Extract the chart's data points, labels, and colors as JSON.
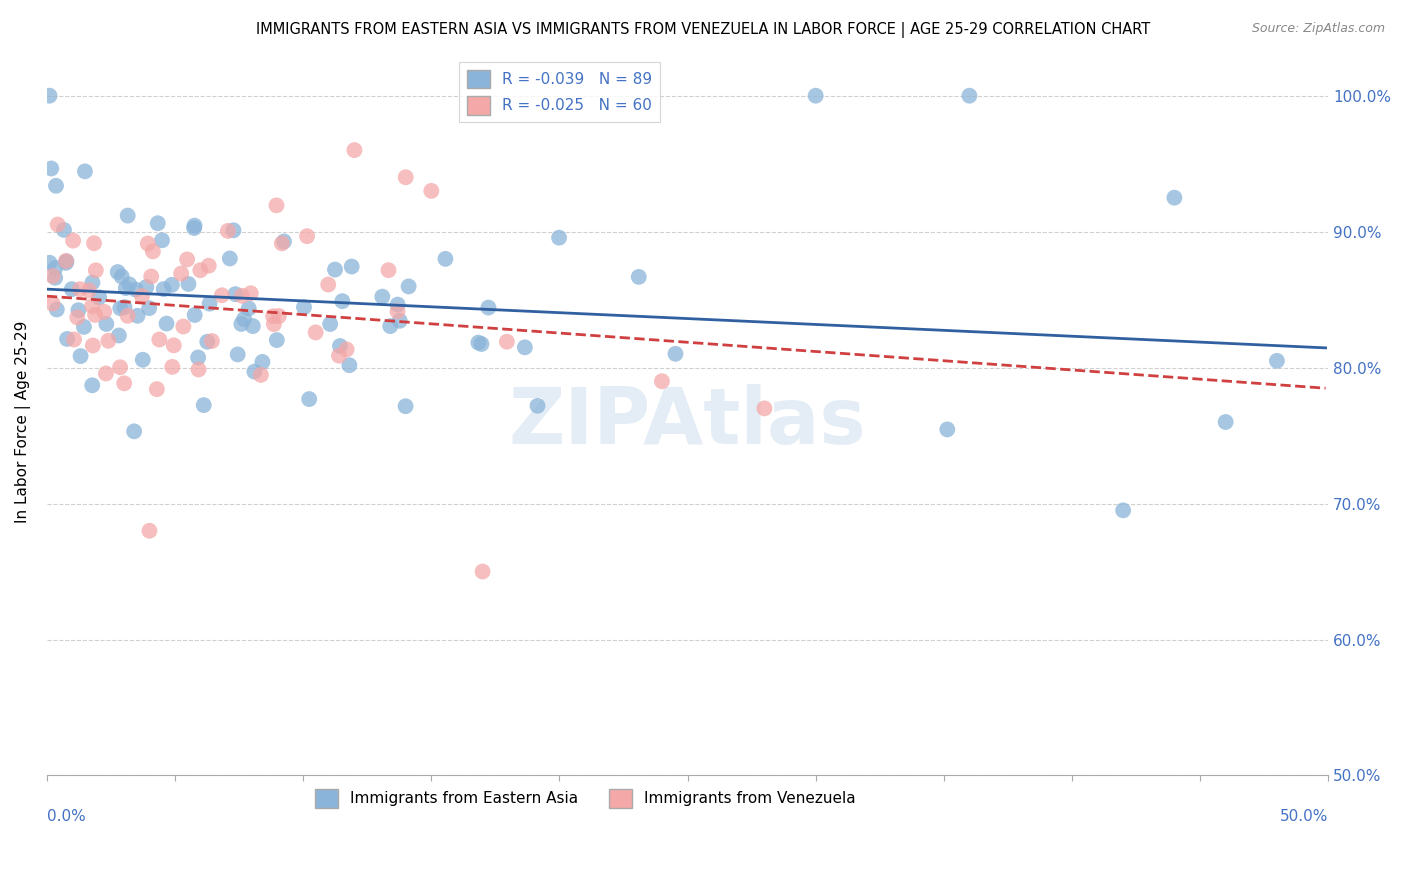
{
  "title": "IMMIGRANTS FROM EASTERN ASIA VS IMMIGRANTS FROM VENEZUELA IN LABOR FORCE | AGE 25-29 CORRELATION CHART",
  "source": "Source: ZipAtlas.com",
  "ylabel": "In Labor Force | Age 25-29",
  "r_blue": -0.039,
  "n_blue": 89,
  "r_pink": -0.025,
  "n_pink": 60,
  "color_blue": "#8ab4d9",
  "color_pink": "#f4a8a8",
  "color_line_blue": "#3060a0",
  "color_line_pink": "#d04040",
  "xmin": 0.0,
  "xmax": 0.5,
  "ymin": 0.5,
  "ymax": 1.02,
  "yticks": [
    0.5,
    0.6,
    0.7,
    0.8,
    0.9,
    1.0
  ],
  "ytick_labels": [
    "50.0%",
    "60.0%",
    "70.0%",
    "80.0%",
    "90.0%",
    "100.0%"
  ],
  "label_blue": "Immigrants from Eastern Asia",
  "label_pink": "Immigrants from Venezuela",
  "watermark": "ZIPAtlas"
}
